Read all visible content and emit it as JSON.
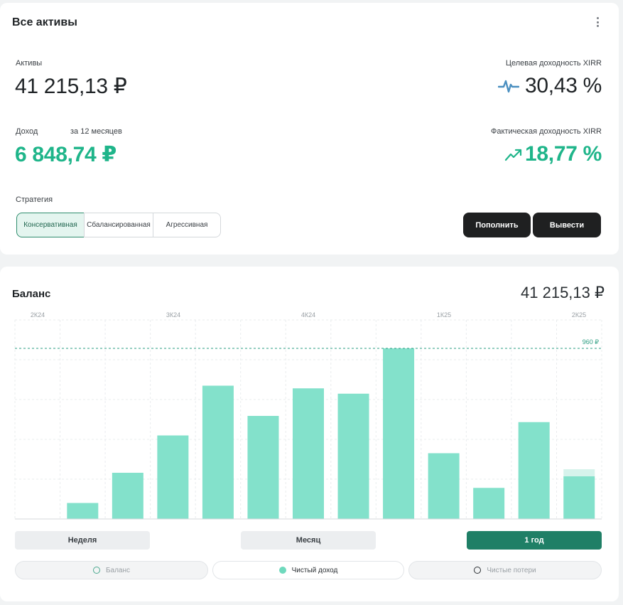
{
  "card": {
    "title": "Все активы",
    "assets_label": "Активы",
    "assets_value": "41 215,13 ₽",
    "target_label": "Целевая доходность XIRR",
    "target_value": "30,43 %",
    "income_label": "Доход",
    "income_period": "за 12 месяцев",
    "income_value": "6 848,74 ₽",
    "actual_label": "Фактическая доходность XIRR",
    "actual_value": "18,77 %",
    "strategy_label": "Стратегия",
    "strategies": [
      "Консервативная",
      "Сбалансированная",
      "Агрессивная"
    ],
    "active_strategy": "Консервативная",
    "deposit_label": "Пополнить",
    "withdraw_label": "Вывести"
  },
  "balance": {
    "title": "Баланс",
    "total": "41 215,13 ₽",
    "periods": [
      "Неделя",
      "Месяц",
      "1 год"
    ],
    "active_period": "1 год",
    "legend": [
      "Баланс",
      "Чистый доход",
      "Чистые потери"
    ],
    "active_legend": "Чистый доход"
  },
  "colors": {
    "bar": "#83e1cb",
    "bar_light": "#d6f3ec",
    "accent_green": "#1fb58a",
    "reference_line": "#2a9d80",
    "pulse_icon": "#4a8fc0",
    "dark_button": "#1f2021",
    "active_period": "#1f7f66"
  },
  "icons": {
    "kebab": "more-vertical-icon",
    "pulse": "pulse-icon",
    "trend": "trending-up-icon"
  },
  "chart_data": {
    "type": "bar",
    "x_ticks": [
      "2К24",
      "3К24",
      "4К24",
      "1К25",
      "2К25"
    ],
    "reference_line": {
      "value": 960,
      "label": "960 ₽"
    },
    "ylim": [
      0,
      1120
    ],
    "grid": true,
    "series": [
      {
        "values": [
          0,
          90,
          260,
          470,
          750,
          580,
          735,
          705,
          960,
          370,
          175,
          545,
          240
        ]
      },
      {
        "values": [
          0,
          0,
          0,
          0,
          0,
          0,
          0,
          0,
          0,
          0,
          0,
          0,
          40
        ]
      }
    ]
  }
}
